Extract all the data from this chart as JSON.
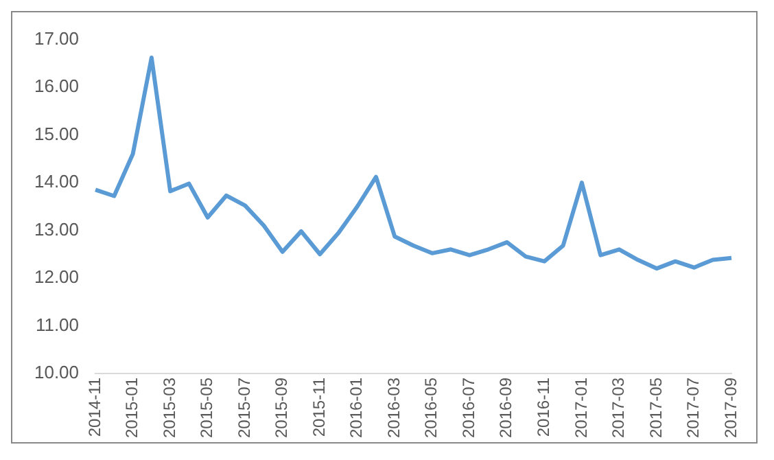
{
  "chart_data": {
    "type": "line",
    "categories": [
      "2014-11",
      null,
      "2015-01",
      null,
      "2015-03",
      null,
      "2015-05",
      null,
      "2015-07",
      null,
      "2015-09",
      null,
      "2015-11",
      null,
      "2016-01",
      null,
      "2016-03",
      null,
      "2016-05",
      null,
      "2016-07",
      null,
      "2016-09",
      null,
      "2016-11",
      null,
      "2017-01",
      null,
      "2017-03",
      null,
      "2017-05",
      null,
      "2017-07",
      null,
      "2017-09"
    ],
    "series": [
      {
        "color": "#5b9bd5",
        "values": [
          13.85,
          13.72,
          14.6,
          16.62,
          13.82,
          13.98,
          13.27,
          13.73,
          13.52,
          13.1,
          12.55,
          12.98,
          12.5,
          12.95,
          13.5,
          14.12,
          12.87,
          12.68,
          12.52,
          12.6,
          12.48,
          12.6,
          12.75,
          12.45,
          12.35,
          12.68,
          14.0,
          12.48,
          12.6,
          12.38,
          12.2,
          12.35,
          12.22,
          12.38,
          12.42
        ]
      }
    ],
    "ylim": [
      10,
      17
    ],
    "yticks": [
      {
        "value": 10,
        "label": "10.00"
      },
      {
        "value": 11,
        "label": "11.00"
      },
      {
        "value": 12,
        "label": "12.00"
      },
      {
        "value": 13,
        "label": "13.00"
      },
      {
        "value": 14,
        "label": "14.00"
      },
      {
        "value": 15,
        "label": "15.00"
      },
      {
        "value": 16,
        "label": "16.00"
      },
      {
        "value": 17,
        "label": "17.00"
      }
    ],
    "grid": false,
    "legend": false,
    "marker": "none",
    "line_style": "solid"
  }
}
